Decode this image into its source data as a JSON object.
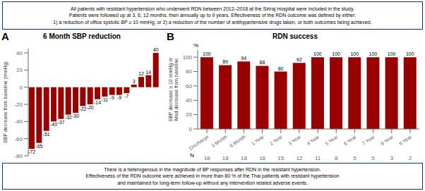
{
  "chart_data": [
    {
      "type": "bar",
      "title": "6 Month SBP reduction",
      "panel_label": "A",
      "categories": [
        null,
        null,
        null,
        null,
        null,
        null,
        null,
        null,
        null,
        null,
        null,
        null,
        null,
        null,
        null,
        null,
        null,
        null
      ],
      "values": [
        -72,
        -65,
        -51,
        -40,
        -37,
        -32,
        -30,
        -22,
        -20,
        -14,
        -11,
        -9,
        -9,
        -7,
        3,
        12,
        14,
        40
      ],
      "color": "#990000",
      "ylabel": "SBP decrease from baseline (mmHg)",
      "ylim": [
        -80,
        45
      ],
      "yticks": [
        -80,
        -60,
        -40,
        -20,
        0,
        20,
        40
      ],
      "data_labels": true,
      "tick_labels": "y",
      "grid": false,
      "annotations": [
        {
          "text": "All patients with resistant hypertension who underwent RDN between 2012–2018 at the Siriraj Hospital were included in the study.\nPatients were followed up at 3, 6, 12 months, then annually up to 9 years. Effectiveness of the RDN outcome was defined by either:\n1) a reduction of office systolic BP ≥ 10 mmHg, or 2) a reduction of the number of antihypertensive drugs taken, or both outcomes being achieved.",
          "color": "#003399"
        }
      ]
    },
    {
      "type": "bar",
      "title": "RDN success",
      "panel_label": "B",
      "categories": [
        "Discharge",
        "3 Month",
        "6 Month",
        "1 Year",
        "2 Year",
        "3 Year",
        "4 Year",
        "5 Year",
        "6 Year",
        "7 Year",
        "8 Year",
        "9 Year"
      ],
      "values": [
        100,
        89,
        94,
        88,
        80,
        92,
        100,
        100,
        100,
        100,
        100,
        100
      ],
      "color": "#990000",
      "ylabel": "SBP decrease ≥ 10 mmHg or\nMed decrease from baseline",
      "ylabel_unit": "%",
      "ylim": [
        0,
        110
      ],
      "yticks": [
        0,
        20,
        40,
        60,
        80,
        100
      ],
      "data_labels": true,
      "grid": false,
      "n_label": "N",
      "n": [
        18,
        18,
        18,
        16,
        15,
        12,
        11,
        8,
        5,
        5,
        3,
        2
      ],
      "annotations": [
        {
          "text": "There is a heterogenous in the magnitude of BP responses after RDN in the resistant hypertension.\nEffectiveness of the RDN outcome were achieved in more than 80 % of the Thai patients with resistant hypertension\nand maintained for long-term follow-up without any intervention related adverse events.",
          "color": "#003399"
        }
      ]
    }
  ]
}
